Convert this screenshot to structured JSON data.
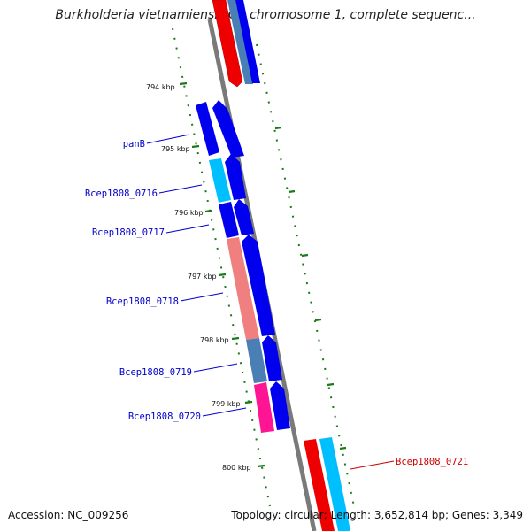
{
  "title": "Burkholderia vietnamiensis G4 chromosome 1, complete sequenc...",
  "footer": {
    "accession": "Accession: NC_009256",
    "summary": "Topology: circular; Length: 3,652,814 bp; Genes: 3,349"
  },
  "ruler": {
    "ticks": [
      "794 kbp",
      "795 kbp",
      "796 kbp",
      "797 kbp",
      "798 kbp",
      "799 kbp",
      "800 kbp"
    ]
  },
  "genes": [
    {
      "label": "panB",
      "color": "#0000cc"
    },
    {
      "label": "Bcep1808_0716",
      "color": "#0000cc"
    },
    {
      "label": "Bcep1808_0717",
      "color": "#0000cc"
    },
    {
      "label": "Bcep1808_0718",
      "color": "#0000cc"
    },
    {
      "label": "Bcep1808_0719",
      "color": "#0000cc"
    },
    {
      "label": "Bcep1808_0720",
      "color": "#0000cc"
    },
    {
      "label": "Bcep1808_0721",
      "color": "#cc0000"
    }
  ],
  "colors": {
    "backbone": "#777777",
    "ticks": "#1a7a1a",
    "cds_blue": "#0000ee",
    "cds_light_blue": "#00bfff",
    "cds_steel": "#4a7fb5",
    "cds_red": "#ee0000",
    "cds_salmon": "#f08080",
    "cds_magenta": "#ff1493"
  }
}
